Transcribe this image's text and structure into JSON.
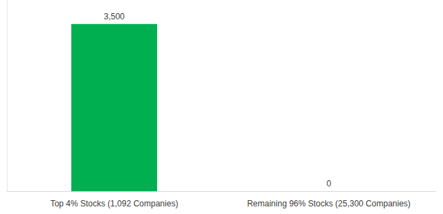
{
  "chart_data": {
    "type": "bar",
    "categories": [
      "Top 4% Stocks (1,092 Companies)",
      "Remaining 96% Stocks (25,300 Companies)"
    ],
    "values": [
      3500,
      0
    ],
    "value_labels": [
      "3,500",
      "0"
    ],
    "color": "#00b050",
    "ylim": [
      0,
      4000
    ],
    "grid": false,
    "data_labels": true,
    "tick_labels": "x"
  }
}
